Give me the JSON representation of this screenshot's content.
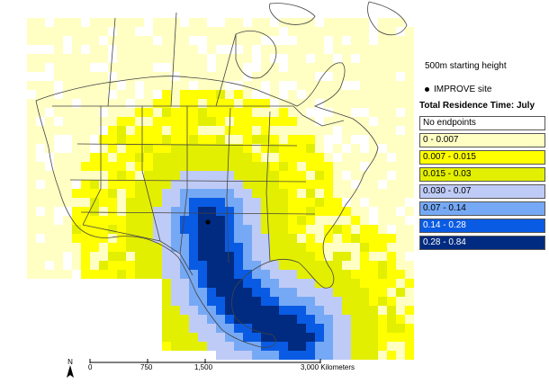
{
  "legend": {
    "starting_height": "500m starting height",
    "site_label": "IMPROVE site",
    "title": "Total Residence Time: July",
    "items": [
      {
        "label": "No endpoints",
        "color": "#ffffff"
      },
      {
        "label": "0 - 0.007",
        "color": "#ffffc4"
      },
      {
        "label": "0.007 - 0.015",
        "color": "#ffff00"
      },
      {
        "label": "0.015 - 0.03",
        "color": "#e3ef00"
      },
      {
        "label": "0.030 - 0.07",
        "color": "#bfcbf7"
      },
      {
        "label": "0.07 - 0.14",
        "color": "#76a9f5"
      },
      {
        "label": "0.14 - 0.28",
        "color": "#0a5be3"
      },
      {
        "label": "0.28 - 0.84",
        "color": "#002b80"
      }
    ]
  },
  "scale": {
    "ticks": [
      "0",
      "750",
      "1,500",
      "3,000 Kilometers"
    ]
  },
  "north_label": "N",
  "colors": {
    "land_outline": "#444444",
    "site_marker": "#000000"
  }
}
